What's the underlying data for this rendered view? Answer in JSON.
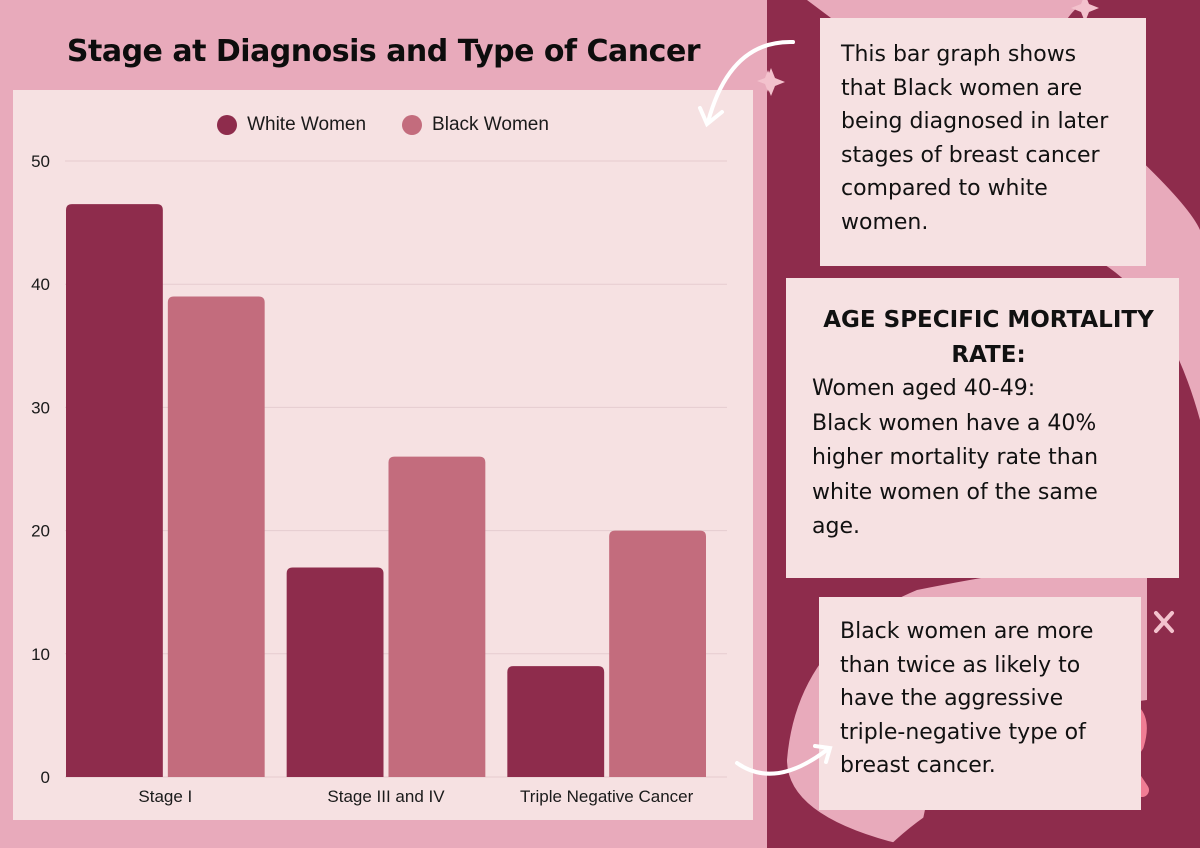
{
  "title": "Stage at Diagnosis and Type of Cancer",
  "colors": {
    "background": "#e8aabb",
    "card": "#f6e1e2",
    "panel": "#8e2c4c",
    "white_women": "#8e2c4c",
    "black_women": "#c36c7d",
    "grid": "#e5cccf",
    "ribbon": "#f07d94"
  },
  "chart_data": {
    "type": "bar",
    "title": "Stage at Diagnosis and Type of Cancer",
    "categories": [
      "Stage I",
      "Stage III and IV",
      "Triple Negative Cancer"
    ],
    "series": [
      {
        "name": "White Women",
        "values": [
          46.5,
          17,
          9
        ]
      },
      {
        "name": "Black Women",
        "values": [
          39,
          26,
          20
        ]
      }
    ],
    "xlabel": "",
    "ylabel": "",
    "ylim": [
      0,
      50
    ],
    "yticks": [
      0,
      10,
      20,
      30,
      40,
      50
    ],
    "grid": true,
    "legend": "top-center"
  },
  "legend": [
    {
      "label": "White Women"
    },
    {
      "label": "Black Women"
    }
  ],
  "boxes": {
    "box1": {
      "lines": [
        "This bar graph shows",
        "that Black women are",
        "being diagnosed in later",
        "stages of breast cancer",
        "compared to white",
        "women."
      ]
    },
    "box2": {
      "heading_lines": [
        "AGE SPECIFIC MORTALITY",
        "RATE:"
      ],
      "lines": [
        "Women aged 40-49:",
        "Black women have a 40%",
        "higher mortality rate than",
        "white women of the same",
        "age."
      ]
    },
    "box3": {
      "lines": [
        "Black women are more",
        "than twice as likely to",
        "have the aggressive",
        "triple-negative type of",
        "breast cancer."
      ]
    }
  }
}
